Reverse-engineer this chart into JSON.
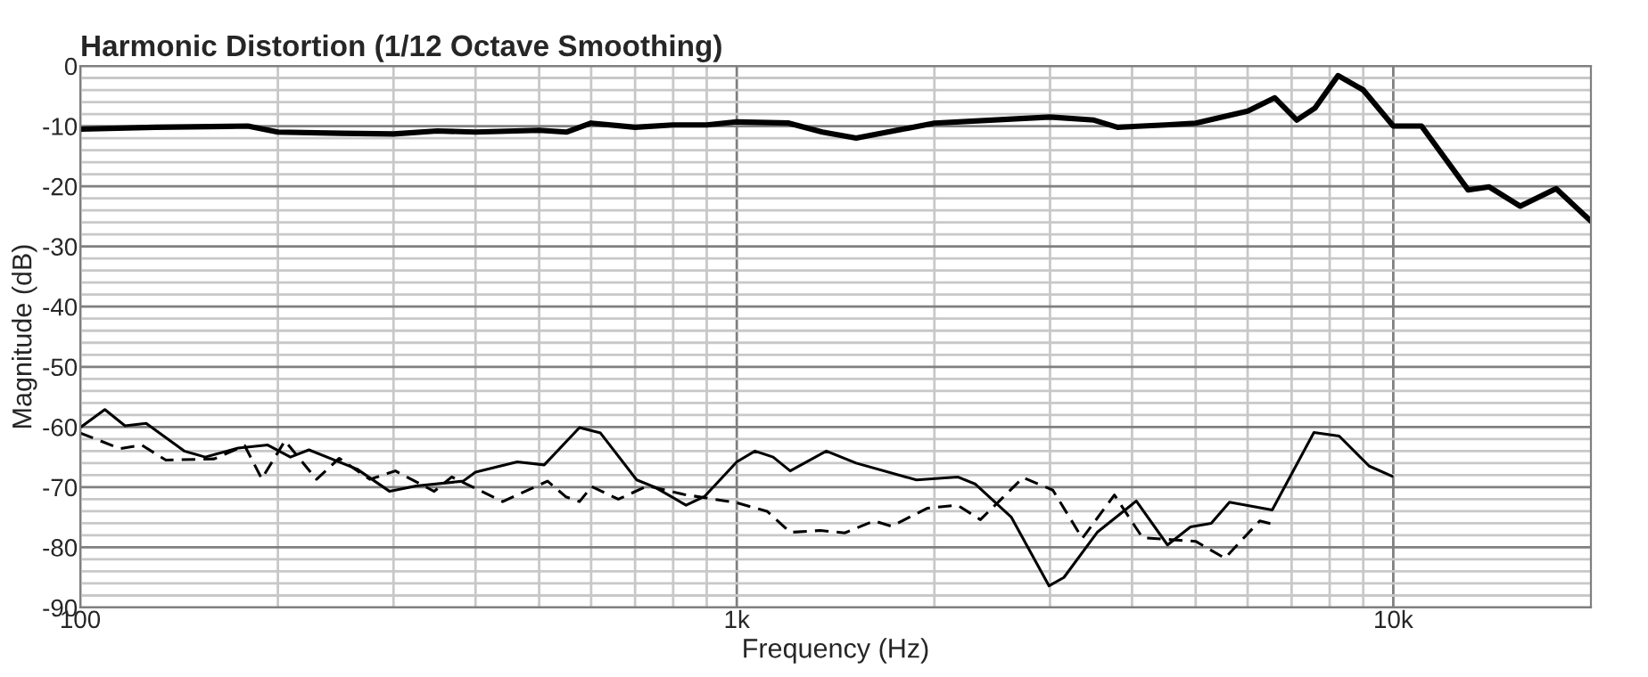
{
  "chart_data": {
    "type": "line",
    "title": "Harmonic Distortion (1/12 Octave Smoothing)",
    "xlabel": "Frequency (Hz)",
    "ylabel": "Magnitude (dB)",
    "log": "x",
    "grid": true,
    "legend": false,
    "xlim": [
      100,
      20000
    ],
    "ylim": [
      -90,
      0
    ],
    "xticks": [
      {
        "value": 100,
        "label": "100"
      },
      {
        "value": 200,
        "label": null
      },
      {
        "value": 300,
        "label": null
      },
      {
        "value": 400,
        "label": null
      },
      {
        "value": 500,
        "label": null
      },
      {
        "value": 600,
        "label": null
      },
      {
        "value": 700,
        "label": null
      },
      {
        "value": 800,
        "label": null
      },
      {
        "value": 900,
        "label": null
      },
      {
        "value": 1000,
        "label": "1k"
      },
      {
        "value": 2000,
        "label": null
      },
      {
        "value": 3000,
        "label": null
      },
      {
        "value": 4000,
        "label": null
      },
      {
        "value": 5000,
        "label": null
      },
      {
        "value": 6000,
        "label": null
      },
      {
        "value": 7000,
        "label": null
      },
      {
        "value": 8000,
        "label": null
      },
      {
        "value": 9000,
        "label": null
      },
      {
        "value": 10000,
        "label": "10k"
      }
    ],
    "yticks": [
      -90,
      {
        "value": -88,
        "label": null
      },
      {
        "value": -86,
        "label": null
      },
      {
        "value": -84,
        "label": null
      },
      {
        "value": -82,
        "label": null
      },
      -80,
      {
        "value": -78,
        "label": null
      },
      {
        "value": -76,
        "label": null
      },
      {
        "value": -74,
        "label": null
      },
      {
        "value": -72,
        "label": null
      },
      -70,
      {
        "value": -68,
        "label": null
      },
      {
        "value": -66,
        "label": null
      },
      {
        "value": -64,
        "label": null
      },
      {
        "value": -62,
        "label": null
      },
      -60,
      {
        "value": -58,
        "label": null
      },
      {
        "value": -56,
        "label": null
      },
      {
        "value": -54,
        "label": null
      },
      {
        "value": -52,
        "label": null
      },
      -50,
      {
        "value": -48,
        "label": null
      },
      {
        "value": -46,
        "label": null
      },
      {
        "value": -44,
        "label": null
      },
      {
        "value": -42,
        "label": null
      },
      -40,
      {
        "value": -38,
        "label": null
      },
      {
        "value": -36,
        "label": null
      },
      {
        "value": -34,
        "label": null
      },
      {
        "value": -32,
        "label": null
      },
      -30,
      {
        "value": -28,
        "label": null
      },
      {
        "value": -26,
        "label": null
      },
      {
        "value": -24,
        "label": null
      },
      {
        "value": -22,
        "label": null
      },
      -20,
      {
        "value": -18,
        "label": null
      },
      {
        "value": -16,
        "label": null
      },
      {
        "value": -14,
        "label": null
      },
      {
        "value": -12,
        "label": null
      },
      -10,
      {
        "value": -8,
        "label": null
      },
      {
        "value": -6,
        "label": null
      },
      {
        "value": -4,
        "label": null
      },
      {
        "value": -2,
        "label": null
      },
      0
    ],
    "series": [
      {
        "color": "#000000",
        "line_style": "solid",
        "x": [
          100,
          130,
          180,
          200,
          250,
          300,
          350,
          400,
          500,
          550,
          600,
          700,
          800,
          900,
          1000,
          1200,
          1350,
          1520,
          2000,
          3000,
          3500,
          3800,
          4500,
          5000,
          6000,
          6600,
          7130,
          7600,
          8240,
          9000,
          10000,
          11040,
          13000,
          14000,
          15600,
          17700,
          20000
        ],
        "values": [
          -10.5,
          -10.2,
          -10,
          -11,
          -11.2,
          -11.3,
          -10.8,
          -11,
          -10.7,
          -11,
          -9.5,
          -10.2,
          -9.8,
          -9.8,
          -9.3,
          -9.5,
          -11,
          -12,
          -9.5,
          -8.5,
          -9,
          -10.2,
          -9.8,
          -9.5,
          -7.5,
          -5.3,
          -9,
          -7,
          -1.6,
          -4,
          -10,
          -10,
          -20.6,
          -20.1,
          -23.3,
          -20.4,
          -25.8
        ]
      },
      {
        "color": "#000000",
        "line_style": "solid",
        "x": [
          100,
          109,
          117,
          126,
          144,
          155,
          174,
          193,
          209,
          223,
          264,
          296,
          325,
          383,
          400,
          463,
          509,
          576,
          620,
          704,
          750,
          837,
          894,
          1000,
          1066,
          1136,
          1206,
          1369,
          1520,
          1878,
          2170,
          2310,
          2620,
          2990,
          3150,
          3540,
          4060,
          4530,
          4910,
          5280,
          5630,
          6540,
          7570,
          8270,
          9190,
          9960
        ],
        "values": [
          -60.1,
          -57.1,
          -59.8,
          -59.4,
          -64,
          -65,
          -63.5,
          -63,
          -65,
          -63.8,
          -67,
          -70.7,
          -69.8,
          -69,
          -67.5,
          -65.8,
          -66.3,
          -60.1,
          -61,
          -68.8,
          -70,
          -73,
          -71.5,
          -65.8,
          -64,
          -65,
          -67.3,
          -64,
          -66,
          -68.8,
          -68.3,
          -69.5,
          -75,
          -86.4,
          -85,
          -77.5,
          -72.3,
          -79.6,
          -76.6,
          -76,
          -72.5,
          -73.8,
          -60.9,
          -61.5,
          -66.5,
          -68.2
        ]
      },
      {
        "color": "#000000",
        "line_style": "dashed",
        "x": [
          100,
          115,
          124,
          135,
          160,
          178,
          189,
          205,
          229,
          248,
          276,
          302,
          346,
          368,
          440,
          515,
          549,
          576,
          601,
          660,
          731,
          830,
          922,
          1000,
          1112,
          1206,
          1341,
          1460,
          1620,
          1720,
          1950,
          2170,
          2350,
          2730,
          3030,
          3360,
          3760,
          4150,
          5000,
          5540,
          6260,
          6590
        ],
        "values": [
          -61,
          -63.6,
          -63,
          -65.5,
          -65.3,
          -63.1,
          -68.6,
          -62.3,
          -68.7,
          -65.2,
          -68.7,
          -67.3,
          -70.7,
          -68.3,
          -72.4,
          -69,
          -71.6,
          -72.4,
          -69.9,
          -72,
          -69.8,
          -71.2,
          -72,
          -72.6,
          -74,
          -77.5,
          -77.2,
          -77.6,
          -75.6,
          -76.5,
          -73.5,
          -73,
          -75.4,
          -68.4,
          -70.5,
          -78.5,
          -71.3,
          -78.4,
          -79,
          -81.8,
          -75.6,
          -76.2
        ]
      }
    ]
  }
}
